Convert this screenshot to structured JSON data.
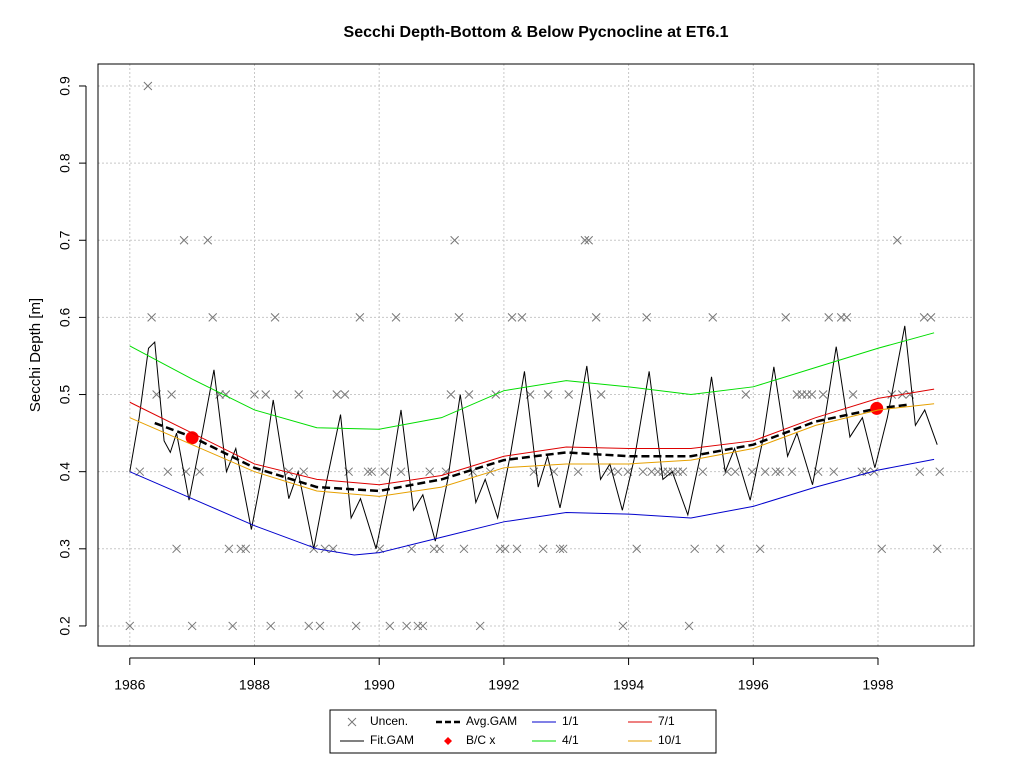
{
  "chart_data": {
    "type": "line",
    "title": "Secchi Depth-Bottom & Below Pycnocline at ET6.1",
    "y_label": "Secchi Depth [m]",
    "xlim": [
      1985.49,
      1999.54
    ],
    "ylim": [
      0.174,
      0.9285
    ],
    "xticks": [
      1986,
      1988,
      1990,
      1992,
      1994,
      1996,
      1998
    ],
    "yticks": [
      0.2,
      0.3,
      0.4,
      0.5,
      0.6,
      0.7,
      0.8,
      0.9
    ],
    "grid": true,
    "legend": "bottom",
    "series": [
      {
        "name": "Uncen.",
        "color": "#777777",
        "marker": "x",
        "x": [
          1986.0,
          1986.16,
          1986.29,
          1986.35,
          1986.43,
          1986.61,
          1986.67,
          1986.75,
          1986.87,
          1986.9,
          1987.0,
          1987.12,
          1987.25,
          1987.33,
          1987.44,
          1987.54,
          1987.59,
          1987.65,
          1987.78,
          1987.86,
          1988.0,
          1988.18,
          1988.26,
          1988.33,
          1988.55,
          1988.71,
          1988.79,
          1988.87,
          1988.95,
          1989.05,
          1989.13,
          1989.26,
          1989.32,
          1989.45,
          1989.51,
          1989.63,
          1989.69,
          1989.82,
          1989.88,
          1990.01,
          1990.09,
          1990.17,
          1990.27,
          1990.35,
          1990.44,
          1990.52,
          1990.62,
          1990.7,
          1990.81,
          1990.88,
          1990.97,
          1991.07,
          1991.15,
          1991.21,
          1991.28,
          1991.36,
          1991.44,
          1991.5,
          1991.62,
          1991.78,
          1991.87,
          1991.94,
          1992.02,
          1992.13,
          1992.21,
          1992.29,
          1992.42,
          1992.48,
          1992.63,
          1992.71,
          1992.8,
          1992.9,
          1992.95,
          1993.04,
          1993.19,
          1993.3,
          1993.36,
          1993.48,
          1993.56,
          1993.72,
          1993.83,
          1993.91,
          1993.99,
          1994.13,
          1994.23,
          1994.29,
          1994.37,
          1994.47,
          1994.55,
          1994.63,
          1994.71,
          1994.79,
          1994.87,
          1994.97,
          1995.06,
          1995.19,
          1995.35,
          1995.47,
          1995.58,
          1995.71,
          1995.88,
          1995.98,
          1996.11,
          1996.19,
          1996.36,
          1996.43,
          1996.52,
          1996.62,
          1996.7,
          1996.78,
          1996.86,
          1996.94,
          1997.04,
          1997.12,
          1997.21,
          1997.29,
          1997.41,
          1997.5,
          1997.6,
          1997.74,
          1997.82,
          1997.94,
          1998.06,
          1998.22,
          1998.31,
          1998.39,
          1998.51,
          1998.67,
          1998.74,
          1998.85,
          1998.95,
          1998.99
        ],
        "values": [
          0.2,
          0.4,
          0.9,
          0.6,
          0.5,
          0.4,
          0.5,
          0.3,
          0.7,
          0.4,
          0.2,
          0.4,
          0.7,
          0.6,
          0.5,
          0.5,
          0.3,
          0.2,
          0.3,
          0.3,
          0.5,
          0.5,
          0.2,
          0.6,
          0.4,
          0.5,
          0.4,
          0.2,
          0.3,
          0.2,
          0.3,
          0.3,
          0.5,
          0.5,
          0.4,
          0.2,
          0.6,
          0.4,
          0.4,
          0.3,
          0.4,
          0.2,
          0.6,
          0.4,
          0.2,
          0.3,
          0.2,
          0.2,
          0.4,
          0.3,
          0.3,
          0.4,
          0.5,
          0.7,
          0.6,
          0.3,
          0.5,
          0.4,
          0.2,
          0.4,
          0.5,
          0.3,
          0.3,
          0.6,
          0.3,
          0.6,
          0.5,
          0.4,
          0.3,
          0.5,
          0.4,
          0.3,
          0.3,
          0.5,
          0.4,
          0.7,
          0.7,
          0.6,
          0.5,
          0.4,
          0.4,
          0.2,
          0.4,
          0.3,
          0.4,
          0.6,
          0.4,
          0.4,
          0.4,
          0.4,
          0.4,
          0.4,
          0.4,
          0.2,
          0.3,
          0.4,
          0.6,
          0.3,
          0.4,
          0.4,
          0.5,
          0.4,
          0.3,
          0.4,
          0.4,
          0.4,
          0.6,
          0.4,
          0.5,
          0.5,
          0.5,
          0.5,
          0.4,
          0.5,
          0.6,
          0.4,
          0.6,
          0.6,
          0.5,
          0.4,
          0.4,
          0.4,
          0.3,
          0.5,
          0.7,
          0.5,
          0.5,
          0.4,
          0.6,
          0.6,
          0.3,
          0.4
        ]
      },
      {
        "name": "Fit.GAM",
        "color": "#000000",
        "width": 1,
        "x": [
          1986.0,
          1986.15,
          1986.3,
          1986.4,
          1986.55,
          1986.65,
          1986.75,
          1986.95,
          1987.15,
          1987.35,
          1987.55,
          1987.7,
          1987.95,
          1988.15,
          1988.3,
          1988.55,
          1988.7,
          1988.95,
          1989.15,
          1989.38,
          1989.55,
          1989.7,
          1989.95,
          1990.15,
          1990.35,
          1990.55,
          1990.7,
          1990.9,
          1991.1,
          1991.3,
          1991.55,
          1991.7,
          1991.9,
          1992.1,
          1992.33,
          1992.55,
          1992.7,
          1992.9,
          1993.1,
          1993.33,
          1993.55,
          1993.7,
          1993.9,
          1994.1,
          1994.33,
          1994.55,
          1994.7,
          1994.95,
          1995.15,
          1995.33,
          1995.55,
          1995.7,
          1995.95,
          1996.15,
          1996.33,
          1996.55,
          1996.7,
          1996.95,
          1997.15,
          1997.33,
          1997.55,
          1997.75,
          1997.95,
          1998.15,
          1998.43,
          1998.6,
          1998.75,
          1998.95
        ],
        "values": [
          0.4,
          0.47,
          0.56,
          0.568,
          0.44,
          0.425,
          0.45,
          0.363,
          0.445,
          0.532,
          0.4,
          0.43,
          0.325,
          0.41,
          0.493,
          0.365,
          0.4,
          0.3,
          0.385,
          0.474,
          0.34,
          0.365,
          0.3,
          0.38,
          0.48,
          0.35,
          0.37,
          0.31,
          0.39,
          0.5,
          0.36,
          0.39,
          0.34,
          0.42,
          0.53,
          0.38,
          0.42,
          0.353,
          0.43,
          0.537,
          0.39,
          0.41,
          0.35,
          0.42,
          0.53,
          0.39,
          0.4,
          0.344,
          0.42,
          0.523,
          0.4,
          0.43,
          0.363,
          0.44,
          0.536,
          0.42,
          0.45,
          0.383,
          0.47,
          0.562,
          0.445,
          0.47,
          0.405,
          0.47,
          0.589,
          0.46,
          0.48,
          0.435
        ]
      },
      {
        "name": "Avg.GAM",
        "color": "#000000",
        "width": 2.5,
        "dash": true,
        "x": [
          1986.4,
          1987,
          1988,
          1989,
          1990,
          1991,
          1992,
          1993,
          1994,
          1995,
          1996,
          1997,
          1998,
          1998.5
        ],
        "values": [
          0.463,
          0.445,
          0.405,
          0.38,
          0.375,
          0.39,
          0.415,
          0.425,
          0.42,
          0.42,
          0.435,
          0.465,
          0.482,
          0.487
        ]
      },
      {
        "name": "B/C x",
        "color": "#ff0000",
        "marker": "circle",
        "x": [
          1987.0,
          1997.98
        ],
        "values": [
          0.444,
          0.482
        ]
      },
      {
        "name": "1/1",
        "color": "#0000cc",
        "width": 1,
        "x": [
          1986,
          1987,
          1988,
          1989,
          1989.6,
          1990,
          1991,
          1992,
          1993,
          1994,
          1995,
          1996,
          1997,
          1998,
          1998.9
        ],
        "values": [
          0.4,
          0.365,
          0.33,
          0.3,
          0.292,
          0.295,
          0.315,
          0.335,
          0.347,
          0.345,
          0.34,
          0.355,
          0.38,
          0.402,
          0.416
        ]
      },
      {
        "name": "4/1",
        "color": "#00dd00",
        "width": 1,
        "x": [
          1986,
          1987,
          1988,
          1989,
          1990,
          1991,
          1992,
          1993,
          1994,
          1995,
          1996,
          1997,
          1998,
          1998.9
        ],
        "values": [
          0.563,
          0.52,
          0.48,
          0.457,
          0.455,
          0.47,
          0.505,
          0.518,
          0.51,
          0.5,
          0.51,
          0.535,
          0.56,
          0.58
        ]
      },
      {
        "name": "7/1",
        "color": "#dd0000",
        "width": 1,
        "x": [
          1986,
          1987,
          1988,
          1989,
          1990,
          1991,
          1992,
          1993,
          1994,
          1995,
          1996,
          1997,
          1998,
          1998.9
        ],
        "values": [
          0.49,
          0.45,
          0.41,
          0.39,
          0.383,
          0.395,
          0.42,
          0.432,
          0.43,
          0.43,
          0.44,
          0.47,
          0.495,
          0.507
        ]
      },
      {
        "name": "10/1",
        "color": "#e6a000",
        "width": 1,
        "x": [
          1986,
          1987,
          1988,
          1989,
          1990,
          1991,
          1992,
          1993,
          1994,
          1995,
          1996,
          1997,
          1998,
          1998.9
        ],
        "values": [
          0.47,
          0.435,
          0.4,
          0.375,
          0.368,
          0.38,
          0.405,
          0.41,
          0.41,
          0.415,
          0.43,
          0.46,
          0.48,
          0.488
        ]
      }
    ]
  }
}
